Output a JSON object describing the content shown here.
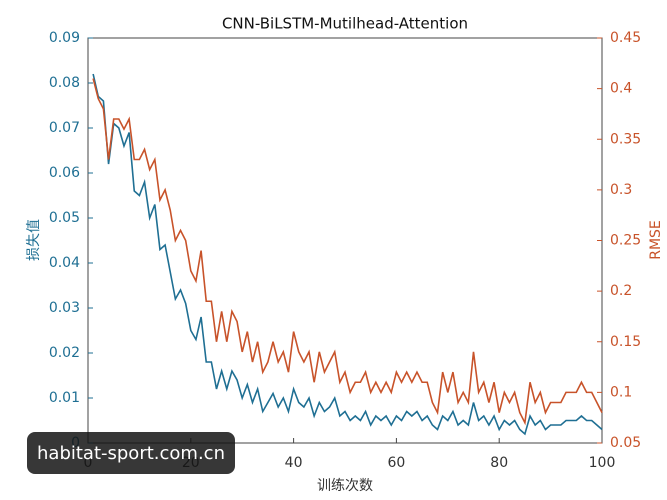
{
  "chart_data": {
    "type": "line",
    "title": "CNN-BiLSTM-Mutilhead-Attention",
    "xlabel": "训练次数",
    "ylabel": "损失值",
    "y2label": "RMSE",
    "x": [
      1,
      2,
      3,
      4,
      5,
      6,
      7,
      8,
      9,
      10,
      11,
      12,
      13,
      14,
      15,
      16,
      17,
      18,
      19,
      20,
      21,
      22,
      23,
      24,
      25,
      26,
      27,
      28,
      29,
      30,
      31,
      32,
      33,
      34,
      35,
      36,
      37,
      38,
      39,
      40,
      41,
      42,
      43,
      44,
      45,
      46,
      47,
      48,
      49,
      50,
      51,
      52,
      53,
      54,
      55,
      56,
      57,
      58,
      59,
      60,
      61,
      62,
      63,
      64,
      65,
      66,
      67,
      68,
      69,
      70,
      71,
      72,
      73,
      74,
      75,
      76,
      77,
      78,
      79,
      80,
      81,
      82,
      83,
      84,
      85,
      86,
      87,
      88,
      89,
      90,
      91,
      92,
      93,
      94,
      95,
      96,
      97,
      98,
      99,
      100
    ],
    "series": [
      {
        "name": "损失值",
        "color": "#1f6f93",
        "axis": "y",
        "values": [
          0.082,
          0.077,
          0.076,
          0.062,
          0.071,
          0.07,
          0.066,
          0.069,
          0.056,
          0.055,
          0.058,
          0.05,
          0.053,
          0.043,
          0.044,
          0.038,
          0.032,
          0.034,
          0.031,
          0.025,
          0.023,
          0.028,
          0.018,
          0.018,
          0.012,
          0.016,
          0.012,
          0.016,
          0.014,
          0.01,
          0.013,
          0.009,
          0.012,
          0.007,
          0.009,
          0.011,
          0.008,
          0.01,
          0.007,
          0.012,
          0.009,
          0.008,
          0.01,
          0.006,
          0.009,
          0.007,
          0.008,
          0.01,
          0.006,
          0.007,
          0.005,
          0.006,
          0.005,
          0.007,
          0.004,
          0.006,
          0.005,
          0.006,
          0.004,
          0.006,
          0.005,
          0.007,
          0.006,
          0.007,
          0.005,
          0.006,
          0.004,
          0.003,
          0.006,
          0.005,
          0.007,
          0.004,
          0.005,
          0.004,
          0.009,
          0.005,
          0.006,
          0.004,
          0.006,
          0.003,
          0.005,
          0.004,
          0.005,
          0.003,
          0.002,
          0.006,
          0.004,
          0.005,
          0.003,
          0.004,
          0.004,
          0.004,
          0.005,
          0.005,
          0.005,
          0.006,
          0.005,
          0.005,
          0.004,
          0.003
        ]
      },
      {
        "name": "RMSE",
        "color": "#c8532a",
        "axis": "y2",
        "values": [
          0.41,
          0.39,
          0.38,
          0.33,
          0.37,
          0.37,
          0.36,
          0.37,
          0.33,
          0.33,
          0.34,
          0.32,
          0.33,
          0.29,
          0.3,
          0.28,
          0.25,
          0.26,
          0.25,
          0.22,
          0.21,
          0.24,
          0.19,
          0.19,
          0.15,
          0.18,
          0.15,
          0.18,
          0.17,
          0.14,
          0.16,
          0.13,
          0.15,
          0.12,
          0.13,
          0.15,
          0.13,
          0.14,
          0.12,
          0.16,
          0.14,
          0.13,
          0.14,
          0.11,
          0.14,
          0.12,
          0.13,
          0.14,
          0.11,
          0.12,
          0.1,
          0.11,
          0.11,
          0.12,
          0.1,
          0.11,
          0.1,
          0.11,
          0.1,
          0.12,
          0.11,
          0.12,
          0.11,
          0.12,
          0.11,
          0.11,
          0.09,
          0.08,
          0.12,
          0.1,
          0.12,
          0.09,
          0.1,
          0.09,
          0.14,
          0.1,
          0.11,
          0.09,
          0.11,
          0.08,
          0.1,
          0.09,
          0.1,
          0.08,
          0.07,
          0.11,
          0.09,
          0.1,
          0.08,
          0.09,
          0.09,
          0.09,
          0.1,
          0.1,
          0.1,
          0.11,
          0.1,
          0.1,
          0.09,
          0.08
        ]
      }
    ],
    "xlim": [
      0,
      100
    ],
    "xticks": [
      0,
      20,
      40,
      60,
      80,
      100
    ],
    "ylim": [
      0,
      0.09
    ],
    "yticks": [
      0,
      0.01,
      0.02,
      0.03,
      0.04,
      0.05,
      0.06,
      0.07,
      0.08,
      0.09
    ],
    "y2lim": [
      0.05,
      0.45
    ],
    "y2ticks": [
      0.05,
      0.1,
      0.15,
      0.2,
      0.25,
      0.3,
      0.35,
      0.4,
      0.45
    ]
  },
  "watermark": "habitat-sport.com.cn"
}
